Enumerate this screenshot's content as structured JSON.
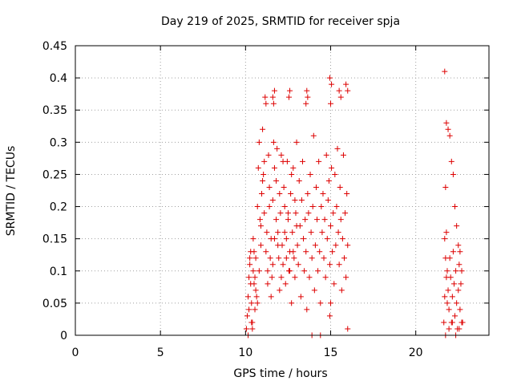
{
  "chart_data": {
    "type": "scatter",
    "title": "Day 219 of 2025, SRMTID for receiver spja",
    "xlabel": "GPS time / hours",
    "ylabel": "SRMTID / TECUs",
    "xlim": [
      0,
      24.3
    ],
    "ylim": [
      0,
      0.45
    ],
    "x_ticks": [
      0,
      5,
      10,
      15,
      20
    ],
    "x_tick_labels": [
      "0",
      "5",
      "10",
      "15",
      "20"
    ],
    "y_ticks": [
      0,
      0.05,
      0.1,
      0.15,
      0.2,
      0.25,
      0.3,
      0.35,
      0.4,
      0.45
    ],
    "y_tick_labels": [
      "0",
      "0.05",
      "0.1",
      "0.15",
      "0.2",
      "0.25",
      "0.3",
      "0.35",
      "0.4",
      "0.45"
    ],
    "grid": true,
    "marker": "+",
    "series": [
      {
        "name": "SRMTID",
        "color": "#dd0000",
        "x": [
          10.05,
          10.1,
          10.15,
          10.2,
          10.25,
          10.3,
          10.35,
          10.4,
          10.45,
          10.5,
          10.55,
          10.6,
          10.15,
          10.25,
          10.35,
          10.45,
          10.55,
          10.65,
          10.2,
          10.3,
          10.4,
          10.5,
          10.6,
          10.7,
          10.75,
          10.8,
          10.85,
          10.9,
          10.95,
          11.0,
          11.05,
          11.1,
          11.15,
          11.2,
          11.25,
          11.3,
          11.35,
          11.4,
          11.45,
          11.5,
          11.55,
          11.6,
          11.65,
          11.7,
          10.7,
          10.8,
          10.9,
          11.0,
          11.1,
          11.2,
          11.3,
          11.4,
          11.5,
          11.6,
          11.7,
          11.8,
          11.9,
          12.0,
          12.1,
          12.2,
          12.3,
          12.4,
          12.5,
          12.6,
          12.7,
          12.8,
          12.9,
          13.0,
          11.8,
          11.85,
          11.9,
          11.95,
          12.0,
          12.05,
          12.1,
          12.15,
          12.2,
          12.25,
          12.3,
          12.35,
          12.4,
          12.45,
          12.5,
          12.55,
          12.6,
          12.65,
          12.7,
          12.75,
          12.8,
          12.85,
          12.9,
          12.95,
          13.0,
          13.05,
          13.1,
          13.15,
          13.2,
          13.25,
          13.3,
          13.35,
          13.4,
          13.45,
          13.5,
          13.55,
          13.6,
          13.65,
          13.7,
          13.75,
          13.8,
          13.85,
          13.9,
          13.95,
          14.0,
          14.05,
          14.1,
          14.15,
          14.2,
          14.25,
          14.3,
          14.35,
          14.4,
          14.45,
          14.5,
          14.55,
          14.6,
          14.65,
          14.7,
          14.75,
          14.8,
          14.85,
          14.9,
          14.95,
          15.0,
          15.05,
          15.1,
          15.15,
          15.2,
          15.25,
          15.3,
          15.35,
          15.4,
          15.45,
          15.5,
          15.55,
          15.6,
          15.65,
          15.7,
          15.75,
          15.8,
          15.85,
          15.9,
          15.95,
          16.0,
          11.6,
          11.65,
          11.7,
          12.55,
          12.6,
          13.55,
          13.6,
          13.65,
          14.95,
          15.0,
          15.05,
          15.5,
          15.6,
          15.9,
          16.0,
          13.9,
          14.4,
          14.95,
          15.0,
          16.0,
          21.65,
          21.7,
          21.75,
          21.8,
          21.85,
          21.9,
          21.95,
          22.0,
          22.05,
          22.1,
          22.15,
          22.2,
          22.25,
          22.3,
          22.35,
          22.4,
          22.45,
          22.5,
          22.55,
          22.6,
          22.65,
          22.7,
          21.7,
          21.8,
          21.9,
          22.0,
          22.1,
          22.2,
          22.3,
          22.4,
          22.5,
          22.6,
          22.7,
          21.75,
          21.95,
          22.15,
          22.35,
          22.55,
          22.75,
          21.7,
          21.75,
          21.8,
          21.85
        ],
        "y": [
          0.01,
          0.03,
          0.06,
          0.09,
          0.12,
          0.08,
          0.05,
          0.02,
          0.1,
          0.13,
          0.04,
          0.07,
          0.0,
          0.11,
          0.02,
          0.15,
          0.09,
          0.06,
          0.04,
          0.13,
          0.01,
          0.08,
          0.12,
          0.2,
          0.26,
          0.3,
          0.18,
          0.14,
          0.22,
          0.32,
          0.25,
          0.19,
          0.37,
          0.36,
          0.16,
          0.1,
          0.28,
          0.23,
          0.12,
          0.06,
          0.09,
          0.21,
          0.3,
          0.15,
          0.05,
          0.1,
          0.17,
          0.24,
          0.27,
          0.13,
          0.08,
          0.2,
          0.15,
          0.11,
          0.26,
          0.18,
          0.14,
          0.22,
          0.09,
          0.27,
          0.16,
          0.12,
          0.19,
          0.1,
          0.25,
          0.13,
          0.21,
          0.17,
          0.24,
          0.29,
          0.16,
          0.12,
          0.07,
          0.19,
          0.28,
          0.14,
          0.11,
          0.23,
          0.2,
          0.08,
          0.15,
          0.27,
          0.18,
          0.1,
          0.13,
          0.22,
          0.05,
          0.16,
          0.26,
          0.12,
          0.09,
          0.19,
          0.3,
          0.14,
          0.11,
          0.24,
          0.17,
          0.06,
          0.21,
          0.27,
          0.15,
          0.1,
          0.18,
          0.13,
          0.04,
          0.22,
          0.19,
          0.09,
          0.25,
          0.16,
          0.12,
          0.2,
          0.31,
          0.07,
          0.14,
          0.23,
          0.18,
          0.1,
          0.27,
          0.13,
          0.05,
          0.2,
          0.16,
          0.22,
          0.12,
          0.18,
          0.09,
          0.28,
          0.15,
          0.21,
          0.24,
          0.11,
          0.17,
          0.26,
          0.13,
          0.19,
          0.08,
          0.25,
          0.14,
          0.2,
          0.29,
          0.16,
          0.11,
          0.23,
          0.18,
          0.07,
          0.15,
          0.28,
          0.12,
          0.19,
          0.09,
          0.22,
          0.14,
          0.37,
          0.36,
          0.38,
          0.37,
          0.38,
          0.36,
          0.38,
          0.37,
          0.4,
          0.36,
          0.39,
          0.38,
          0.37,
          0.39,
          0.38,
          0.0,
          0.0,
          0.03,
          0.05,
          0.01,
          0.02,
          0.15,
          0.23,
          0.16,
          0.1,
          0.07,
          0.04,
          0.12,
          0.09,
          0.02,
          0.06,
          0.13,
          0.08,
          0.03,
          0.1,
          0.05,
          0.01,
          0.07,
          0.11,
          0.04,
          0.08,
          0.02,
          0.41,
          0.33,
          0.32,
          0.31,
          0.27,
          0.25,
          0.2,
          0.17,
          0.14,
          0.13,
          0.1,
          0.0,
          0.01,
          0.02,
          0.0,
          0.01,
          0.02,
          0.06,
          0.12,
          0.09,
          0.05
        ]
      }
    ]
  }
}
